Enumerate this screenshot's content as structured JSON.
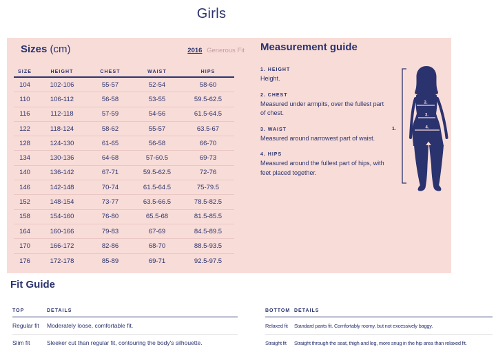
{
  "page_title": "Girls",
  "sizes_panel": {
    "heading": "Sizes",
    "heading_unit": "(cm)",
    "year_link": "2016",
    "fit_label": "Generous Fit",
    "table": {
      "columns": [
        "SIZE",
        "HEIGHT",
        "CHEST",
        "WAIST",
        "HIPS"
      ],
      "rows": [
        [
          "104",
          "102-106",
          "55-57",
          "52-54",
          "58-60"
        ],
        [
          "110",
          "106-112",
          "56-58",
          "53-55",
          "59.5-62.5"
        ],
        [
          "116",
          "112-118",
          "57-59",
          "54-56",
          "61.5-64.5"
        ],
        [
          "122",
          "118-124",
          "58-62",
          "55-57",
          "63.5-67"
        ],
        [
          "128",
          "124-130",
          "61-65",
          "56-58",
          "66-70"
        ],
        [
          "134",
          "130-136",
          "64-68",
          "57-60.5",
          "69-73"
        ],
        [
          "140",
          "136-142",
          "67-71",
          "59.5-62.5",
          "72-76"
        ],
        [
          "146",
          "142-148",
          "70-74",
          "61.5-64.5",
          "75-79.5"
        ],
        [
          "152",
          "148-154",
          "73-77",
          "63.5-66.5",
          "78.5-82.5"
        ],
        [
          "158",
          "154-160",
          "76-80",
          "65.5-68",
          "81.5-85.5"
        ],
        [
          "164",
          "160-166",
          "79-83",
          "67-69",
          "84.5-89.5"
        ],
        [
          "170",
          "166-172",
          "82-86",
          "68-70",
          "88.5-93.5"
        ],
        [
          "176",
          "172-178",
          "85-89",
          "69-71",
          "92.5-97.5"
        ]
      ]
    }
  },
  "measurement_guide": {
    "heading": "Measurement guide",
    "items": [
      {
        "label": "1. HEIGHT",
        "text": "Height."
      },
      {
        "label": "2. CHEST",
        "text": "Measured under armpits, over the fullest part of chest."
      },
      {
        "label": "3. WAIST",
        "text": "Measured around narrowest part of waist."
      },
      {
        "label": "4. HIPS",
        "text": "Measured around the fullest part of hips, with feet placed together."
      }
    ],
    "figure_labels": {
      "height": "1.",
      "chest": "2.",
      "waist": "3.",
      "hips": "4."
    }
  },
  "fit_guide": {
    "heading": "Fit Guide",
    "tables": [
      {
        "columns": [
          "TOP",
          "DETAILS"
        ],
        "rows": [
          [
            "Regular fit",
            "Moderately loose, comfortable fit."
          ],
          [
            "Slim fit",
            "Sleeker cut than regular fit, contouring the body's silhouette."
          ]
        ]
      },
      {
        "columns": [
          "BOTTOM",
          "DETAILS"
        ],
        "rows": [
          [
            "Relaxed fit",
            "Standard pants fit. Comfortably roomy, but not excessively baggy."
          ],
          [
            "Straight fit",
            "Straight through the seat, thigh and leg, more snug in the hip area than relaxed fit."
          ]
        ]
      }
    ]
  },
  "colors": {
    "navy": "#2b336e",
    "pink": "#f8dcd8",
    "mauve": "#c49ea4",
    "row_line": "#eac7c4",
    "gray_line": "#dcdcdc"
  }
}
